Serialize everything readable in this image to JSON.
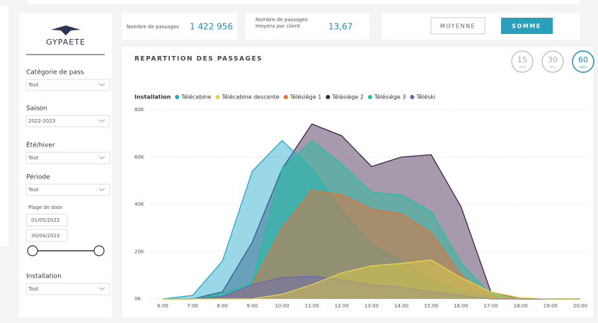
{
  "sidebar": {
    "logo": "GYPAETE",
    "filters": [
      {
        "label": "Catégorie de pass",
        "value": "Tout"
      },
      {
        "label": "Saison",
        "value": "2022-2023"
      },
      {
        "label": "Été/hiver",
        "value": "Tout"
      },
      {
        "label": "Période",
        "value": "Tout"
      }
    ],
    "date_range": {
      "label": "Plage de date",
      "start": "01/05/2022",
      "end": "30/04/2023"
    },
    "installation": {
      "label": "Installation",
      "value": "Tout"
    }
  },
  "kpis": [
    {
      "label": "Nombre de passages",
      "value": "1 422 956"
    },
    {
      "label": "Nombre de passages moyens par client",
      "value": "13,67"
    }
  ],
  "buttons": [
    "MOYENNE",
    "SOMME"
  ],
  "intervals": [
    {
      "value": "15",
      "unit": "mins"
    },
    {
      "value": "30",
      "unit": "mins"
    },
    {
      "value": "60",
      "unit": "mins"
    }
  ],
  "chart_data": {
    "type": "area",
    "title": "REPARTITION DES PASSAGES",
    "legend_title": "Installation",
    "categories": [
      "6:00",
      "7:00",
      "8:00",
      "9:00",
      "10:00",
      "11:00",
      "12:00",
      "13:00",
      "14:00",
      "15:00",
      "16:00",
      "17:00",
      "18:00",
      "19:00",
      "20:00"
    ],
    "series": [
      {
        "name": "Télécabine",
        "color": "#1fa8c9",
        "values": [
          0,
          1500,
          16000,
          54000,
          67000,
          55000,
          37000,
          23000,
          16000,
          8000,
          3000,
          1000,
          0,
          0,
          0
        ]
      },
      {
        "name": "Télécabine descente",
        "color": "#e8d444",
        "values": [
          0,
          0,
          0,
          0,
          2000,
          6000,
          11000,
          14000,
          15000,
          16500,
          9000,
          3000,
          500,
          0,
          0
        ]
      },
      {
        "name": "Télésiège 1",
        "color": "#f06a2c",
        "values": [
          0,
          0,
          1000,
          6000,
          30000,
          46000,
          44000,
          38000,
          36000,
          28000,
          10000,
          1000,
          0,
          0,
          0
        ]
      },
      {
        "name": "Télésiège 2",
        "color": "#3b1f4a",
        "values": [
          0,
          0,
          3000,
          24000,
          55000,
          74000,
          69000,
          56000,
          60000,
          61000,
          39000,
          3000,
          0,
          0,
          0
        ]
      },
      {
        "name": "Télésiège 3",
        "color": "#1bc39a",
        "values": [
          0,
          0,
          2000,
          7000,
          55000,
          67000,
          57000,
          45000,
          44000,
          37000,
          15000,
          2000,
          0,
          0,
          0
        ]
      },
      {
        "name": "Téléski",
        "color": "#6a63b8",
        "values": [
          0,
          0,
          1000,
          6000,
          9000,
          9500,
          8000,
          6000,
          5000,
          3000,
          1500,
          0,
          0,
          0,
          0
        ]
      }
    ],
    "draw_order": [
      3,
      0,
      4,
      2,
      5,
      1
    ],
    "ylim": [
      0,
      80000
    ],
    "yticks": [
      {
        "value": 0,
        "label": "0K"
      },
      {
        "value": 20000,
        "label": "20K"
      },
      {
        "value": 40000,
        "label": "40K"
      },
      {
        "value": 60000,
        "label": "60K"
      },
      {
        "value": 80000,
        "label": "80K"
      }
    ],
    "grid": true
  }
}
